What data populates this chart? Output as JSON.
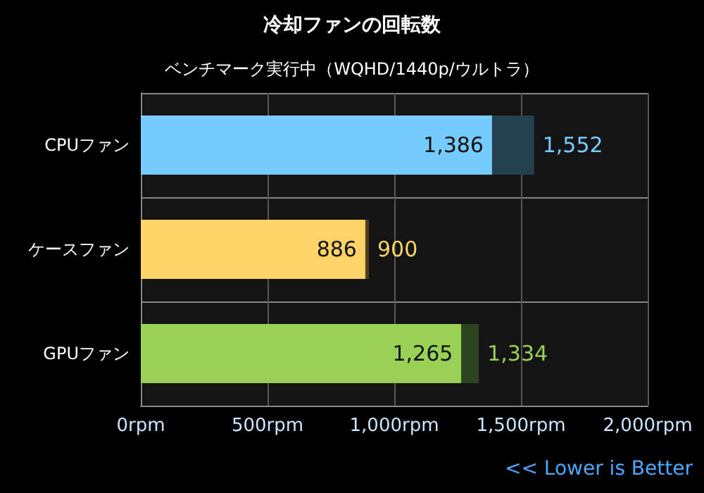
{
  "chart_data": {
    "type": "bar",
    "orientation": "horizontal",
    "stacked": true,
    "title": "冷却ファンの回転数",
    "subtitle": "ベンチマーク実行中（WQHD/1440p/ウルトラ）",
    "categories": [
      "CPUファン",
      "ケースファン",
      "GPUファン"
    ],
    "series": [
      {
        "values": [
          1386,
          886,
          1265
        ],
        "colors": [
          "#77ccff",
          "#ffd466",
          "#99d155"
        ],
        "value_labels": [
          "1,386",
          "886",
          "1,265"
        ]
      },
      {
        "values": [
          166,
          14,
          69
        ],
        "colors": [
          "#25404e",
          "#4e4020",
          "#2c4420"
        ]
      }
    ],
    "totals": [
      "1,552",
      "900",
      "1,334"
    ],
    "xlim": [
      0,
      2000
    ],
    "xticks": [
      {
        "value": 0,
        "label": "0rpm"
      },
      {
        "value": 500,
        "label": "500rpm"
      },
      {
        "value": 1000,
        "label": "1,000rpm"
      },
      {
        "value": 1500,
        "label": "1,500rpm"
      },
      {
        "value": 2000,
        "label": "2,000rpm"
      }
    ],
    "grid": true,
    "annotations": [
      "<< Lower is Better"
    ]
  }
}
